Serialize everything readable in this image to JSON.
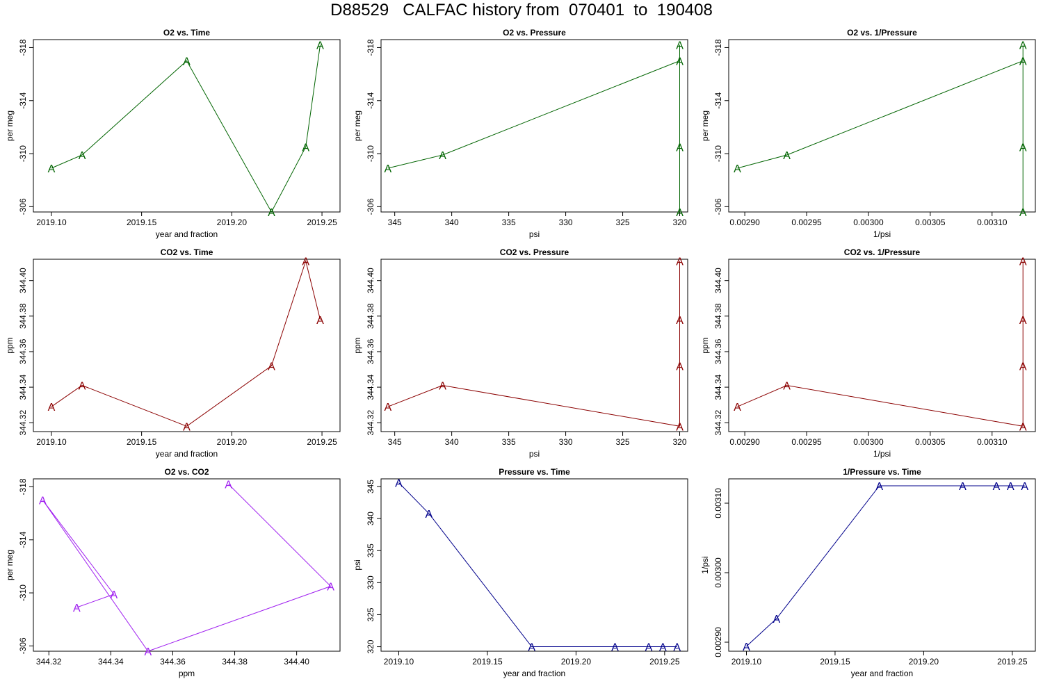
{
  "page": {
    "title": "D88529   CALFAC history from  070401  to  190408"
  },
  "colors": {
    "o2": "#006400",
    "co2": "#8b0000",
    "o2_co2": "#a020f0",
    "pressure": "#00008b"
  },
  "marker_label": "A",
  "chart_data": [
    {
      "id": "o2_vs_time",
      "type": "line",
      "title": "O2 vs. Time",
      "xlabel": "year and fraction",
      "ylabel": "per meg",
      "xlim": [
        2019.09,
        2019.26
      ],
      "ylim": [
        -318.6,
        -305.6
      ],
      "yreverse": true,
      "xticks": [
        2019.1,
        2019.15,
        2019.2,
        2019.25
      ],
      "xtick_labels": [
        "2019.10",
        "2019.15",
        "2019.20",
        "2019.25"
      ],
      "yticks": [
        -306,
        -310,
        -314,
        -318
      ],
      "ytick_labels": [
        "-306",
        "-310",
        "-314",
        "-318"
      ],
      "color_key": "o2",
      "points": [
        {
          "x": 2019.1,
          "y": -308.9,
          "label": "A"
        },
        {
          "x": 2019.117,
          "y": -309.9,
          "label": "A"
        },
        {
          "x": 2019.175,
          "y": -317.0,
          "label": "A"
        },
        {
          "x": 2019.222,
          "y": -305.6,
          "label": "A"
        },
        {
          "x": 2019.241,
          "y": -310.5,
          "label": "A"
        },
        {
          "x": 2019.249,
          "y": -318.2,
          "label": "A"
        }
      ]
    },
    {
      "id": "o2_vs_pressure",
      "type": "line",
      "title": "O2 vs. Pressure",
      "xlabel": "psi",
      "ylabel": "per meg",
      "xlim": [
        346.2,
        319.3
      ],
      "ylim": [
        -318.6,
        -305.6
      ],
      "yreverse": true,
      "xticks": [
        345,
        340,
        335,
        330,
        325,
        320
      ],
      "xtick_labels": [
        "345",
        "340",
        "335",
        "330",
        "325",
        "320"
      ],
      "yticks": [
        -306,
        -310,
        -314,
        -318
      ],
      "ytick_labels": [
        "-306",
        "-310",
        "-314",
        "-318"
      ],
      "color_key": "o2",
      "points": [
        {
          "x": 345.6,
          "y": -308.9,
          "label": "A"
        },
        {
          "x": 340.8,
          "y": -309.9,
          "label": "A"
        },
        {
          "x": 320.0,
          "y": -317.0,
          "label": "A"
        },
        {
          "x": 320.0,
          "y": -305.6,
          "label": "A"
        },
        {
          "x": 320.0,
          "y": -310.5,
          "label": "A"
        },
        {
          "x": 320.0,
          "y": -318.2,
          "label": "A"
        }
      ]
    },
    {
      "id": "o2_vs_inv_pressure",
      "type": "line",
      "title": "O2 vs. 1/Pressure",
      "xlabel": "1/psi",
      "ylabel": "per meg",
      "xlim": [
        0.002887,
        0.003135
      ],
      "ylim": [
        -318.6,
        -305.6
      ],
      "yreverse": true,
      "xticks": [
        0.0029,
        0.00295,
        0.003,
        0.00305,
        0.0031
      ],
      "xtick_labels": [
        "0.00290",
        "0.00295",
        "0.00300",
        "0.00305",
        "0.00310"
      ],
      "yticks": [
        -306,
        -310,
        -314,
        -318
      ],
      "ytick_labels": [
        "-306",
        "-310",
        "-314",
        "-318"
      ],
      "color_key": "o2",
      "points": [
        {
          "x": 0.002894,
          "y": -308.9,
          "label": "A"
        },
        {
          "x": 0.002934,
          "y": -309.9,
          "label": "A"
        },
        {
          "x": 0.003125,
          "y": -317.0,
          "label": "A"
        },
        {
          "x": 0.003125,
          "y": -305.6,
          "label": "A"
        },
        {
          "x": 0.003125,
          "y": -310.5,
          "label": "A"
        },
        {
          "x": 0.003125,
          "y": -318.2,
          "label": "A"
        }
      ]
    },
    {
      "id": "co2_vs_time",
      "type": "line",
      "title": "CO2 vs. Time",
      "xlabel": "year and fraction",
      "ylabel": "ppm",
      "xlim": [
        2019.09,
        2019.26
      ],
      "ylim": [
        344.315,
        344.412
      ],
      "xticks": [
        2019.1,
        2019.15,
        2019.2,
        2019.25
      ],
      "xtick_labels": [
        "2019.10",
        "2019.15",
        "2019.20",
        "2019.25"
      ],
      "yticks": [
        344.32,
        344.34,
        344.36,
        344.38,
        344.4
      ],
      "ytick_labels": [
        "344.32",
        "344.34",
        "344.36",
        "344.38",
        "344.40"
      ],
      "color_key": "co2",
      "points": [
        {
          "x": 2019.1,
          "y": 344.329,
          "label": "A"
        },
        {
          "x": 2019.117,
          "y": 344.341,
          "label": "A"
        },
        {
          "x": 2019.175,
          "y": 344.318,
          "label": "A"
        },
        {
          "x": 2019.222,
          "y": 344.352,
          "label": "A"
        },
        {
          "x": 2019.241,
          "y": 344.411,
          "label": "A"
        },
        {
          "x": 2019.249,
          "y": 344.378,
          "label": "A"
        }
      ]
    },
    {
      "id": "co2_vs_pressure",
      "type": "line",
      "title": "CO2 vs. Pressure",
      "xlabel": "psi",
      "ylabel": "ppm",
      "xlim": [
        346.2,
        319.3
      ],
      "ylim": [
        344.315,
        344.412
      ],
      "xticks": [
        345,
        340,
        335,
        330,
        325,
        320
      ],
      "xtick_labels": [
        "345",
        "340",
        "335",
        "330",
        "325",
        "320"
      ],
      "yticks": [
        344.32,
        344.34,
        344.36,
        344.38,
        344.4
      ],
      "ytick_labels": [
        "344.32",
        "344.34",
        "344.36",
        "344.38",
        "344.40"
      ],
      "color_key": "co2",
      "points": [
        {
          "x": 345.6,
          "y": 344.329,
          "label": "A"
        },
        {
          "x": 340.8,
          "y": 344.341,
          "label": "A"
        },
        {
          "x": 320.0,
          "y": 344.318,
          "label": "A"
        },
        {
          "x": 320.0,
          "y": 344.352,
          "label": "A"
        },
        {
          "x": 320.0,
          "y": 344.411,
          "label": "A"
        },
        {
          "x": 320.0,
          "y": 344.378,
          "label": "A"
        }
      ]
    },
    {
      "id": "co2_vs_inv_pressure",
      "type": "line",
      "title": "CO2 vs. 1/Pressure",
      "xlabel": "1/psi",
      "ylabel": "ppm",
      "xlim": [
        0.002887,
        0.003135
      ],
      "ylim": [
        344.315,
        344.412
      ],
      "xticks": [
        0.0029,
        0.00295,
        0.003,
        0.00305,
        0.0031
      ],
      "xtick_labels": [
        "0.00290",
        "0.00295",
        "0.00300",
        "0.00305",
        "0.00310"
      ],
      "yticks": [
        344.32,
        344.34,
        344.36,
        344.38,
        344.4
      ],
      "ytick_labels": [
        "344.32",
        "344.34",
        "344.36",
        "344.38",
        "344.40"
      ],
      "color_key": "co2",
      "points": [
        {
          "x": 0.002894,
          "y": 344.329,
          "label": "A"
        },
        {
          "x": 0.002934,
          "y": 344.341,
          "label": "A"
        },
        {
          "x": 0.003125,
          "y": 344.318,
          "label": "A"
        },
        {
          "x": 0.003125,
          "y": 344.352,
          "label": "A"
        },
        {
          "x": 0.003125,
          "y": 344.411,
          "label": "A"
        },
        {
          "x": 0.003125,
          "y": 344.378,
          "label": "A"
        }
      ]
    },
    {
      "id": "o2_vs_co2",
      "type": "line",
      "title": "O2 vs. CO2",
      "xlabel": "ppm",
      "ylabel": "per meg",
      "xlim": [
        344.315,
        344.414
      ],
      "ylim": [
        -318.6,
        -305.6
      ],
      "yreverse": true,
      "xticks": [
        344.32,
        344.34,
        344.36,
        344.38,
        344.4
      ],
      "xtick_labels": [
        "344.32",
        "344.34",
        "344.36",
        "344.38",
        "344.40"
      ],
      "yticks": [
        -306,
        -310,
        -314,
        -318
      ],
      "ytick_labels": [
        "-306",
        "-310",
        "-314",
        "-318"
      ],
      "color_key": "o2_co2",
      "points": [
        {
          "x": 344.329,
          "y": -308.9,
          "label": "A"
        },
        {
          "x": 344.341,
          "y": -309.9,
          "label": "A"
        },
        {
          "x": 344.318,
          "y": -317.0,
          "label": "A"
        },
        {
          "x": 344.352,
          "y": -305.6,
          "label": "A"
        },
        {
          "x": 344.411,
          "y": -310.5,
          "label": "A"
        },
        {
          "x": 344.378,
          "y": -318.2,
          "label": "A"
        }
      ]
    },
    {
      "id": "pressure_vs_time",
      "type": "line",
      "title": "Pressure vs. Time",
      "xlabel": "year and fraction",
      "ylabel": "psi",
      "xlim": [
        2019.09,
        2019.263
      ],
      "ylim": [
        319.3,
        346.2
      ],
      "xticks": [
        2019.1,
        2019.15,
        2019.2,
        2019.25
      ],
      "xtick_labels": [
        "2019.10",
        "2019.15",
        "2019.20",
        "2019.25"
      ],
      "yticks": [
        320,
        325,
        330,
        335,
        340,
        345
      ],
      "ytick_labels": [
        "320",
        "325",
        "330",
        "335",
        "340",
        "345"
      ],
      "color_key": "pressure",
      "points": [
        {
          "x": 2019.1,
          "y": 345.6,
          "label": "A"
        },
        {
          "x": 2019.117,
          "y": 340.8,
          "label": "A"
        },
        {
          "x": 2019.175,
          "y": 320.0,
          "label": "A"
        },
        {
          "x": 2019.222,
          "y": 320.0,
          "label": "A"
        },
        {
          "x": 2019.241,
          "y": 320.0,
          "label": "A"
        },
        {
          "x": 2019.249,
          "y": 320.0,
          "label": "A"
        },
        {
          "x": 2019.257,
          "y": 320.0,
          "label": "A"
        }
      ]
    },
    {
      "id": "inv_pressure_vs_time",
      "type": "line",
      "title": "1/Pressure vs. Time",
      "xlabel": "year and fraction",
      "ylabel": "1/psi",
      "xlim": [
        2019.09,
        2019.263
      ],
      "ylim": [
        0.002887,
        0.003135
      ],
      "xticks": [
        2019.1,
        2019.15,
        2019.2,
        2019.25
      ],
      "xtick_labels": [
        "2019.10",
        "2019.15",
        "2019.20",
        "2019.25"
      ],
      "yticks": [
        0.0029,
        0.003,
        0.0031
      ],
      "ytick_labels": [
        "0.00290",
        "0.00300",
        "0.00310"
      ],
      "color_key": "pressure",
      "points": [
        {
          "x": 2019.1,
          "y": 0.002894,
          "label": "A"
        },
        {
          "x": 2019.117,
          "y": 0.002934,
          "label": "A"
        },
        {
          "x": 2019.175,
          "y": 0.003125,
          "label": "A"
        },
        {
          "x": 2019.222,
          "y": 0.003125,
          "label": "A"
        },
        {
          "x": 2019.241,
          "y": 0.003125,
          "label": "A"
        },
        {
          "x": 2019.249,
          "y": 0.003125,
          "label": "A"
        },
        {
          "x": 2019.257,
          "y": 0.003125,
          "label": "A"
        }
      ]
    }
  ]
}
